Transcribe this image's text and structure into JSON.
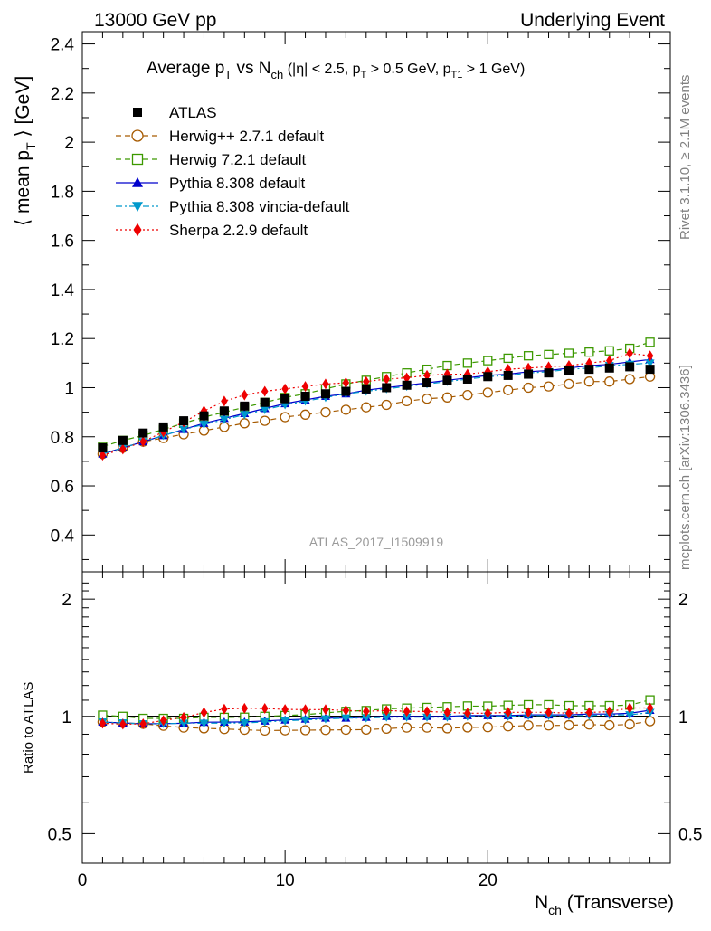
{
  "header": {
    "left": "13000 GeV pp",
    "right": "Underlying Event"
  },
  "side_notes": {
    "rivet": "Rivet 3.1.10, ≥ 2.1M events",
    "mcplots": "mcplots.cern.ch [arXiv:1306.3436]"
  },
  "analysis_id": "ATLAS_2017_I1509919",
  "colors": {
    "data": "#000000",
    "herwigpp": "#a65a00",
    "herwig7": "#3c9900",
    "pythia_default": "#0000cc",
    "pythia_vincia": "#0099cc",
    "sherpa": "#ee0000"
  },
  "chart_data": [
    {
      "type": "scatter",
      "panel": "main",
      "title_parts": {
        "pre": "Average p",
        "sub1": "T",
        "mid": " vs N",
        "sub2": "ch",
        "cuts": "(|η| < 2.5, p",
        "cut_sub1": "T",
        "cuts2": " > 0.5 GeV, p",
        "cut_sub2": "T1",
        "cuts3": " > 1 GeV)"
      },
      "ylabel_parts": {
        "pre": "⟨ mean p",
        "sub": "T",
        "post": " ⟩ [GeV]"
      },
      "xlabel_parts": {
        "pre": "N",
        "sub": "ch",
        "post": " (Transverse)"
      },
      "xlim": [
        0,
        29
      ],
      "ylim": [
        0.25,
        2.45
      ],
      "x_ticks": [
        "0",
        "10",
        "20"
      ],
      "y_ticks": [
        "0.4",
        "0.6",
        "0.8",
        "1",
        "1.2",
        "1.4",
        "1.6",
        "1.8",
        "2",
        "2.2",
        "2.4"
      ],
      "grid": false,
      "legend_position": "top-left",
      "x": [
        1,
        2,
        3,
        4,
        5,
        6,
        7,
        8,
        9,
        10,
        11,
        12,
        13,
        14,
        15,
        16,
        17,
        18,
        19,
        20,
        21,
        22,
        23,
        24,
        25,
        26,
        27,
        28
      ],
      "series": [
        {
          "name": "ATLAS",
          "key": "data",
          "marker": "square",
          "line": "none",
          "values": [
            0.755,
            0.785,
            0.815,
            0.84,
            0.865,
            0.885,
            0.905,
            0.925,
            0.94,
            0.955,
            0.965,
            0.975,
            0.985,
            0.995,
            1.0,
            1.01,
            1.02,
            1.03,
            1.035,
            1.045,
            1.05,
            1.055,
            1.06,
            1.07,
            1.075,
            1.08,
            1.085,
            1.075
          ]
        },
        {
          "name": "Herwig++ 2.7.1 default",
          "key": "herwigpp",
          "marker": "circle-open",
          "line": "dashed",
          "values": [
            0.73,
            0.755,
            0.78,
            0.795,
            0.81,
            0.825,
            0.84,
            0.855,
            0.865,
            0.88,
            0.89,
            0.9,
            0.91,
            0.92,
            0.93,
            0.945,
            0.955,
            0.96,
            0.97,
            0.98,
            0.99,
            1.0,
            1.005,
            1.015,
            1.025,
            1.025,
            1.035,
            1.045
          ]
        },
        {
          "name": "Herwig 7.2.1 default",
          "key": "herwig7",
          "marker": "square-open",
          "line": "dashed",
          "values": [
            0.76,
            0.785,
            0.805,
            0.83,
            0.855,
            0.88,
            0.9,
            0.92,
            0.94,
            0.96,
            0.975,
            0.995,
            1.015,
            1.03,
            1.045,
            1.06,
            1.075,
            1.09,
            1.1,
            1.11,
            1.12,
            1.13,
            1.135,
            1.14,
            1.145,
            1.15,
            1.16,
            1.185
          ]
        },
        {
          "name": "Pythia 8.308 default",
          "key": "pythia_default",
          "marker": "triangle-up",
          "line": "solid",
          "values": [
            0.73,
            0.755,
            0.78,
            0.805,
            0.83,
            0.855,
            0.875,
            0.895,
            0.915,
            0.935,
            0.95,
            0.965,
            0.975,
            0.99,
            1.0,
            1.01,
            1.02,
            1.03,
            1.04,
            1.05,
            1.055,
            1.065,
            1.07,
            1.08,
            1.09,
            1.095,
            1.105,
            1.115
          ]
        },
        {
          "name": "Pythia 8.308 vincia-default",
          "key": "pythia_vincia",
          "marker": "triangle-down",
          "line": "dashdot",
          "values": [
            0.73,
            0.755,
            0.78,
            0.805,
            0.83,
            0.85,
            0.87,
            0.89,
            0.91,
            0.93,
            0.945,
            0.96,
            0.975,
            0.985,
            0.995,
            1.005,
            1.015,
            1.025,
            1.035,
            1.045,
            1.05,
            1.06,
            1.065,
            1.075,
            1.08,
            1.09,
            1.095,
            1.1
          ]
        },
        {
          "name": "Sherpa 2.2.9 default",
          "key": "sherpa",
          "marker": "diamond",
          "line": "dotted",
          "values": [
            0.725,
            0.75,
            0.78,
            0.82,
            0.86,
            0.905,
            0.945,
            0.97,
            0.985,
            0.995,
            1.005,
            1.015,
            1.02,
            1.025,
            1.035,
            1.04,
            1.05,
            1.055,
            1.055,
            1.065,
            1.075,
            1.08,
            1.085,
            1.09,
            1.1,
            1.11,
            1.14,
            1.13
          ]
        }
      ]
    },
    {
      "type": "line",
      "panel": "ratio",
      "ylabel": "Ratio to ATLAS",
      "xlim": [
        0,
        29
      ],
      "ylim": [
        0.42,
        2.35
      ],
      "log_y": true,
      "y_ticks": [
        "0.5",
        "1",
        "2"
      ],
      "grid": false,
      "x": [
        1,
        2,
        3,
        4,
        5,
        6,
        7,
        8,
        9,
        10,
        11,
        12,
        13,
        14,
        15,
        16,
        17,
        18,
        19,
        20,
        21,
        22,
        23,
        24,
        25,
        26,
        27,
        28
      ],
      "series": [
        {
          "name": "ATLAS",
          "key": "data",
          "line": "solid",
          "values": [
            1,
            1,
            1,
            1,
            1,
            1,
            1,
            1,
            1,
            1,
            1,
            1,
            1,
            1,
            1,
            1,
            1,
            1,
            1,
            1,
            1,
            1,
            1,
            1,
            1,
            1,
            1,
            1
          ]
        },
        {
          "name": "Herwig++ 2.7.1 default",
          "key": "herwigpp",
          "marker": "circle-open",
          "line": "dashed",
          "values": [
            0.967,
            0.962,
            0.957,
            0.946,
            0.936,
            0.932,
            0.928,
            0.924,
            0.92,
            0.921,
            0.922,
            0.923,
            0.924,
            0.925,
            0.93,
            0.936,
            0.936,
            0.932,
            0.937,
            0.938,
            0.943,
            0.948,
            0.948,
            0.949,
            0.953,
            0.949,
            0.954,
            0.972
          ]
        },
        {
          "name": "Herwig 7.2.1 default",
          "key": "herwig7",
          "marker": "square-open",
          "line": "dashed",
          "values": [
            1.007,
            1.0,
            0.988,
            0.988,
            0.988,
            0.994,
            0.994,
            0.995,
            1.0,
            1.005,
            1.01,
            1.021,
            1.03,
            1.035,
            1.045,
            1.05,
            1.054,
            1.058,
            1.063,
            1.062,
            1.067,
            1.071,
            1.071,
            1.065,
            1.065,
            1.065,
            1.069,
            1.102
          ]
        },
        {
          "name": "Pythia 8.308 default",
          "key": "pythia_default",
          "marker": "triangle-up",
          "line": "solid",
          "values": [
            0.967,
            0.962,
            0.957,
            0.958,
            0.96,
            0.966,
            0.967,
            0.968,
            0.973,
            0.979,
            0.984,
            0.99,
            0.99,
            0.995,
            1.0,
            1.0,
            1.0,
            1.0,
            1.005,
            1.005,
            1.005,
            1.009,
            1.009,
            1.009,
            1.014,
            1.014,
            1.018,
            1.037
          ]
        },
        {
          "name": "Pythia 8.308 vincia-default",
          "key": "pythia_vincia",
          "marker": "triangle-down",
          "line": "dashdot",
          "values": [
            0.967,
            0.962,
            0.957,
            0.958,
            0.96,
            0.96,
            0.961,
            0.962,
            0.968,
            0.974,
            0.979,
            0.985,
            0.99,
            0.99,
            0.995,
            0.995,
            0.995,
            0.995,
            1.0,
            1.0,
            1.0,
            1.005,
            1.005,
            1.005,
            1.005,
            1.009,
            1.009,
            1.023
          ]
        },
        {
          "name": "Sherpa 2.2.9 default",
          "key": "sherpa",
          "marker": "diamond",
          "line": "dotted",
          "values": [
            0.96,
            0.955,
            0.957,
            0.976,
            0.994,
            1.023,
            1.044,
            1.049,
            1.048,
            1.042,
            1.041,
            1.041,
            1.036,
            1.03,
            1.035,
            1.03,
            1.029,
            1.024,
            1.019,
            1.019,
            1.024,
            1.024,
            1.024,
            1.019,
            1.023,
            1.028,
            1.051,
            1.051
          ]
        }
      ]
    }
  ]
}
